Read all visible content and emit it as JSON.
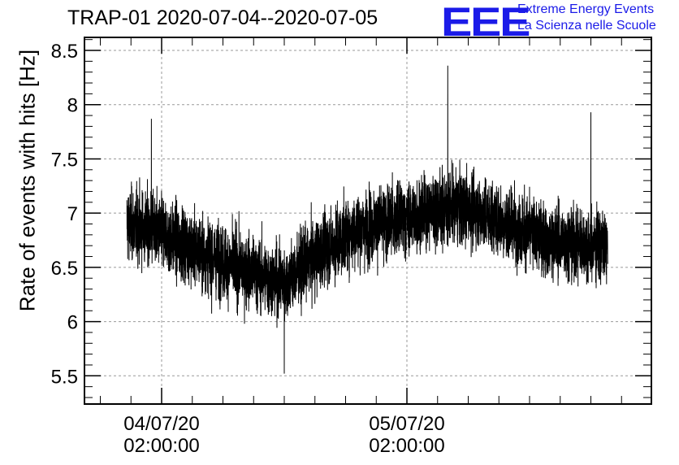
{
  "header": {
    "title": "TRAP-01 2020-07-04--2020-07-05",
    "logo_text": "EEE",
    "brand_line1": "Extreme Energy Events",
    "brand_line2": "La Scienza nelle Scuole",
    "brand_color": "#1b1be8"
  },
  "chart_data": {
    "type": "line",
    "title": "TRAP-01 2020-07-04--2020-07-05",
    "xlabel": "",
    "ylabel": "Rate of events with hits [Hz]",
    "ylim": [
      5.24,
      8.62
    ],
    "y_ticks": [
      "5.5",
      "6",
      "6.5",
      "7",
      "7.5",
      "8",
      "8.5"
    ],
    "x_ticks": [
      {
        "date": "04/07/20",
        "time": "02:00:00"
      },
      {
        "date": "05/07/20",
        "time": "02:00:00"
      }
    ],
    "grid": true,
    "series_color": "#000000",
    "series": [
      {
        "x_start": "2020-07-03 22:36:00",
        "x_end": "2020-07-05 21:39:00",
        "trend": [
          [
            "2020-07-03 22:36",
            6.9
          ],
          [
            "2020-07-04 01:00",
            6.85
          ],
          [
            "2020-07-04 04:00",
            6.72
          ],
          [
            "2020-07-04 08:00",
            6.55
          ],
          [
            "2020-07-04 11:00",
            6.45
          ],
          [
            "2020-07-04 14:00",
            6.35
          ],
          [
            "2020-07-04 17:00",
            6.6
          ],
          [
            "2020-07-04 21:00",
            6.85
          ],
          [
            "2020-07-05 02:00",
            6.95
          ],
          [
            "2020-07-05 05:00",
            7.05
          ],
          [
            "2020-07-05 08:00",
            7.05
          ],
          [
            "2020-07-05 12:00",
            6.9
          ],
          [
            "2020-07-05 16:00",
            6.75
          ],
          [
            "2020-07-05 21:39",
            6.7
          ]
        ],
        "noise_sd": 0.3,
        "peaks": [
          [
            "2020-07-04 01:00",
            7.87
          ],
          [
            "2020-07-05 06:00",
            8.36
          ],
          [
            "2020-07-05 20:00",
            7.93
          ],
          [
            "2020-07-04 14:00",
            5.52
          ]
        ]
      }
    ]
  }
}
